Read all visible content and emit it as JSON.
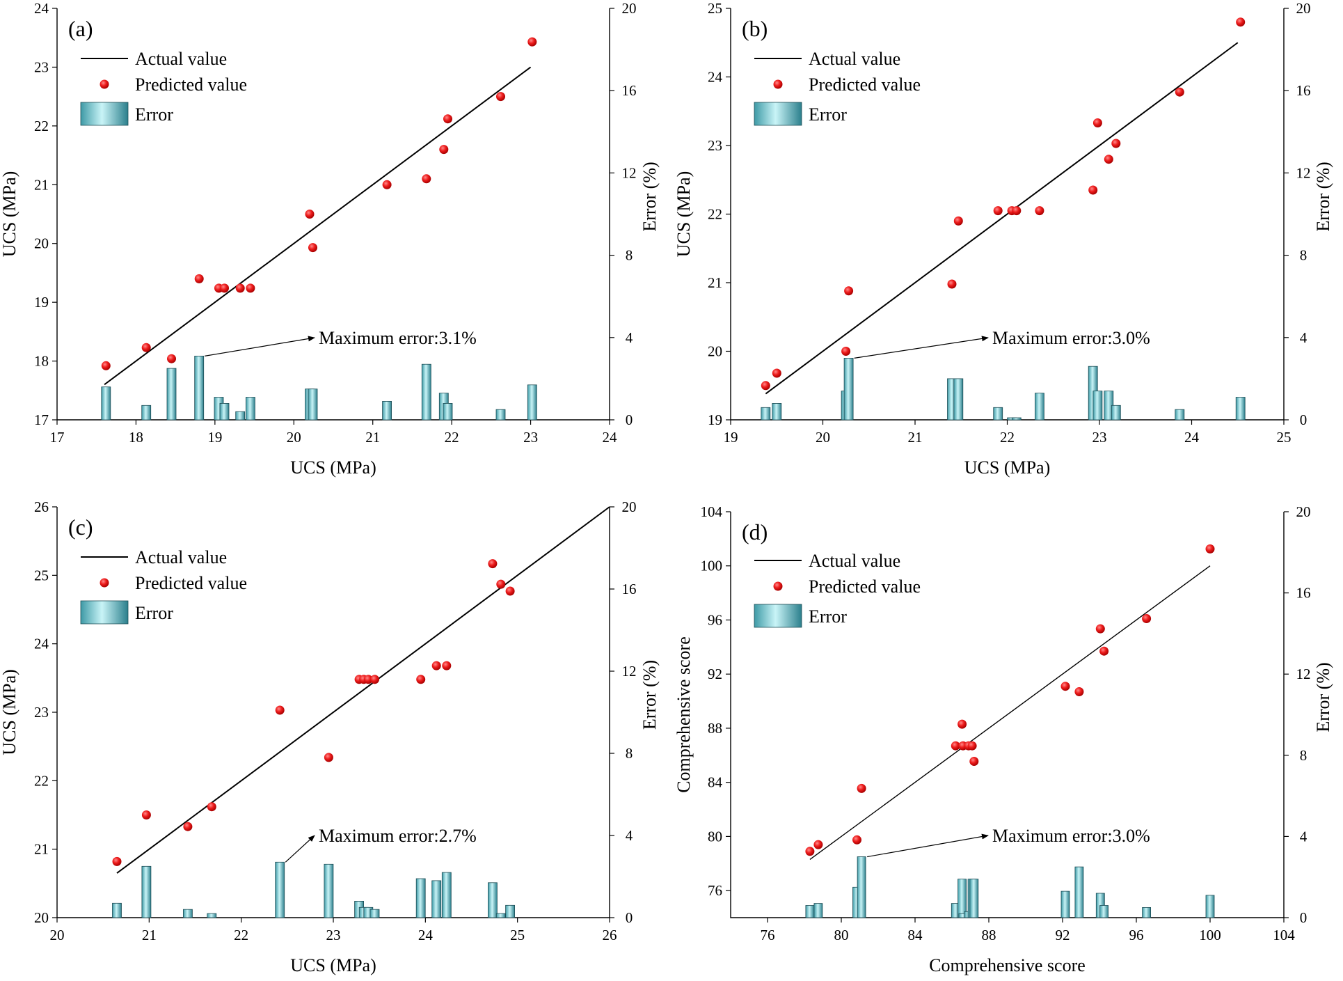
{
  "chart_data": [
    {
      "type": "scatter",
      "panel_label": "(a)",
      "xlabel": "UCS (MPa)",
      "ylabel": "UCS (MPa)",
      "y2label": "Error (%)",
      "xlim": [
        17,
        24
      ],
      "ylim": [
        17,
        24
      ],
      "y2lim": [
        0,
        20
      ],
      "xticks": [
        17,
        18,
        19,
        20,
        21,
        22,
        23,
        24
      ],
      "yticks": [
        17,
        18,
        19,
        20,
        21,
        22,
        23,
        24
      ],
      "y2ticks": [
        0,
        4,
        8,
        12,
        16,
        20
      ],
      "legend": [
        "Actual value",
        "Predicted value",
        "Error"
      ],
      "actual_line": [
        [
          17.6,
          17.6
        ],
        [
          23.0,
          23.0
        ]
      ],
      "predicted": [
        [
          17.62,
          17.92
        ],
        [
          18.13,
          18.23
        ],
        [
          18.45,
          18.04
        ],
        [
          18.8,
          19.4
        ],
        [
          19.05,
          19.24
        ],
        [
          19.12,
          19.24
        ],
        [
          19.32,
          19.24
        ],
        [
          19.45,
          19.24
        ],
        [
          20.2,
          20.5
        ],
        [
          20.24,
          19.93
        ],
        [
          21.18,
          21.0
        ],
        [
          21.68,
          21.1
        ],
        [
          21.9,
          21.6
        ],
        [
          21.95,
          22.12
        ],
        [
          22.62,
          22.5
        ],
        [
          23.02,
          23.43
        ]
      ],
      "errors": [
        [
          17.62,
          1.6
        ],
        [
          18.13,
          0.7
        ],
        [
          18.45,
          2.5
        ],
        [
          18.8,
          3.1
        ],
        [
          19.05,
          1.1
        ],
        [
          19.12,
          0.8
        ],
        [
          19.32,
          0.4
        ],
        [
          19.45,
          1.1
        ],
        [
          20.2,
          1.5
        ],
        [
          20.24,
          1.5
        ],
        [
          21.18,
          0.9
        ],
        [
          21.68,
          2.7
        ],
        [
          21.9,
          1.3
        ],
        [
          21.95,
          0.8
        ],
        [
          22.62,
          0.5
        ],
        [
          23.02,
          1.7
        ]
      ],
      "annotation": {
        "text": "Maximum error:3.1%",
        "points_to": [
          18.8,
          3.1
        ]
      }
    },
    {
      "type": "scatter",
      "panel_label": "(b)",
      "xlabel": "UCS (MPa)",
      "ylabel": "UCS (MPa)",
      "y2label": "Error (%)",
      "xlim": [
        19,
        25
      ],
      "ylim": [
        19,
        25
      ],
      "y2lim": [
        0,
        20
      ],
      "xticks": [
        19,
        20,
        21,
        22,
        23,
        24,
        25
      ],
      "yticks": [
        19,
        20,
        21,
        22,
        23,
        24,
        25
      ],
      "y2ticks": [
        0,
        4,
        8,
        12,
        16,
        20
      ],
      "legend": [
        "Actual value",
        "Predicted value",
        "Error"
      ],
      "actual_line": [
        [
          19.38,
          19.38
        ],
        [
          24.5,
          24.5
        ]
      ],
      "predicted": [
        [
          19.38,
          19.5
        ],
        [
          19.5,
          19.68
        ],
        [
          20.25,
          20.0
        ],
        [
          20.28,
          20.88
        ],
        [
          21.4,
          20.98
        ],
        [
          21.47,
          21.9
        ],
        [
          21.9,
          22.05
        ],
        [
          22.05,
          22.05
        ],
        [
          22.1,
          22.05
        ],
        [
          22.35,
          22.05
        ],
        [
          22.93,
          22.35
        ],
        [
          22.98,
          23.33
        ],
        [
          23.1,
          22.8
        ],
        [
          23.18,
          23.03
        ],
        [
          23.87,
          23.78
        ],
        [
          24.53,
          24.8
        ]
      ],
      "errors": [
        [
          19.38,
          0.6
        ],
        [
          19.5,
          0.8
        ],
        [
          20.25,
          1.4
        ],
        [
          20.28,
          3.0
        ],
        [
          21.4,
          2.0
        ],
        [
          21.47,
          2.0
        ],
        [
          21.9,
          0.6
        ],
        [
          22.05,
          0.1
        ],
        [
          22.1,
          0.1
        ],
        [
          22.35,
          1.3
        ],
        [
          22.93,
          2.6
        ],
        [
          22.98,
          1.4
        ],
        [
          23.1,
          1.4
        ],
        [
          23.18,
          0.7
        ],
        [
          23.87,
          0.5
        ],
        [
          24.53,
          1.1
        ]
      ],
      "annotation": {
        "text": "Maximum error:3.0%",
        "points_to": [
          20.28,
          3.0
        ]
      }
    },
    {
      "type": "scatter",
      "panel_label": "(c)",
      "xlabel": "UCS (MPa)",
      "ylabel": "UCS (MPa)",
      "y2label": "Error (%)",
      "xlim": [
        20,
        26
      ],
      "ylim": [
        20,
        26
      ],
      "y2lim": [
        0,
        20
      ],
      "xticks": [
        20,
        21,
        22,
        23,
        24,
        25,
        26
      ],
      "yticks": [
        20,
        21,
        22,
        23,
        24,
        25,
        26
      ],
      "y2ticks": [
        0,
        4,
        8,
        12,
        16,
        20
      ],
      "legend": [
        "Actual value",
        "Predicted value",
        "Error"
      ],
      "actual_line": [
        [
          20.65,
          20.65
        ],
        [
          26.0,
          26.0
        ]
      ],
      "predicted": [
        [
          20.65,
          20.82
        ],
        [
          20.97,
          21.5
        ],
        [
          21.42,
          21.33
        ],
        [
          21.68,
          21.62
        ],
        [
          22.42,
          23.03
        ],
        [
          22.95,
          22.34
        ],
        [
          23.28,
          23.48
        ],
        [
          23.33,
          23.48
        ],
        [
          23.38,
          23.48
        ],
        [
          23.45,
          23.48
        ],
        [
          23.95,
          23.48
        ],
        [
          24.12,
          23.68
        ],
        [
          24.23,
          23.68
        ],
        [
          24.73,
          25.17
        ],
        [
          24.82,
          24.87
        ],
        [
          24.92,
          24.77
        ]
      ],
      "errors": [
        [
          20.65,
          0.7
        ],
        [
          20.97,
          2.5
        ],
        [
          21.42,
          0.4
        ],
        [
          21.68,
          0.2
        ],
        [
          22.42,
          2.7
        ],
        [
          22.95,
          2.6
        ],
        [
          23.28,
          0.8
        ],
        [
          23.33,
          0.5
        ],
        [
          23.38,
          0.5
        ],
        [
          23.45,
          0.4
        ],
        [
          23.95,
          1.9
        ],
        [
          24.12,
          1.8
        ],
        [
          24.23,
          2.2
        ],
        [
          24.73,
          1.7
        ],
        [
          24.82,
          0.2
        ],
        [
          24.92,
          0.6
        ]
      ],
      "annotation": {
        "text": "Maximum error:2.7%",
        "points_to": [
          22.42,
          2.7
        ]
      }
    },
    {
      "type": "scatter",
      "panel_label": "(d)",
      "xlabel": "Comprehensive score",
      "ylabel": "Comprehensive score",
      "y2label": "Error (%)",
      "xlim": [
        74,
        104
      ],
      "ylim": [
        74,
        104
      ],
      "y2lim": [
        0,
        20
      ],
      "xticks": [
        76,
        80,
        84,
        88,
        92,
        96,
        100,
        104
      ],
      "yticks": [
        76,
        80,
        84,
        88,
        92,
        96,
        100,
        104
      ],
      "y2ticks": [
        0,
        4,
        8,
        12,
        16,
        20
      ],
      "legend": [
        "Actual value",
        "Predicted value",
        "Error"
      ],
      "actual_line": [
        [
          78.3,
          78.3
        ],
        [
          100.0,
          100.0
        ]
      ],
      "predicted": [
        [
          78.3,
          78.9
        ],
        [
          78.75,
          79.4
        ],
        [
          80.85,
          79.75
        ],
        [
          81.1,
          83.55
        ],
        [
          86.2,
          86.7
        ],
        [
          86.55,
          88.3
        ],
        [
          86.6,
          86.7
        ],
        [
          86.9,
          86.7
        ],
        [
          87.1,
          86.7
        ],
        [
          87.2,
          85.55
        ],
        [
          92.15,
          91.1
        ],
        [
          92.9,
          90.7
        ],
        [
          94.05,
          95.35
        ],
        [
          94.25,
          93.7
        ],
        [
          96.55,
          96.1
        ],
        [
          100.0,
          101.25
        ]
      ],
      "errors": [
        [
          78.3,
          0.6
        ],
        [
          78.75,
          0.7
        ],
        [
          80.85,
          1.5
        ],
        [
          81.1,
          3.0
        ],
        [
          86.2,
          0.7
        ],
        [
          86.55,
          1.9
        ],
        [
          86.6,
          0.2
        ],
        [
          86.9,
          0.3
        ],
        [
          87.1,
          1.9
        ],
        [
          87.2,
          1.9
        ],
        [
          92.15,
          1.3
        ],
        [
          92.9,
          2.5
        ],
        [
          94.05,
          1.2
        ],
        [
          94.25,
          0.6
        ],
        [
          96.55,
          0.5
        ],
        [
          100.0,
          1.1
        ]
      ],
      "annotation": {
        "text": "Maximum error:3.0%",
        "points_to": [
          81.1,
          3.0
        ]
      }
    }
  ]
}
